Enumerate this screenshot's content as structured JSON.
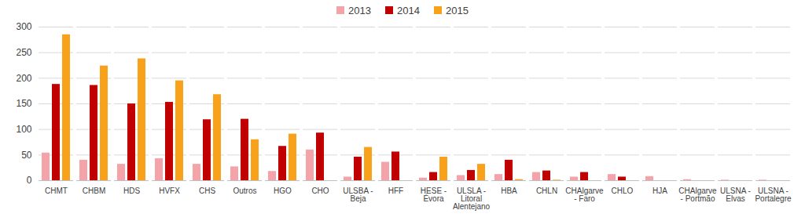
{
  "chart_data": {
    "type": "bar",
    "categories": [
      "CHMT",
      "CHBM",
      "HDS",
      "HVFX",
      "CHS",
      "Outros",
      "HGO",
      "CHO",
      "ULSBA - Beja",
      "HFF",
      "HESE - Évora",
      "ULSLA - Litoral Alentejano",
      "HBA",
      "CHLN",
      "CHAlgarve - Faro",
      "CHLO",
      "HJA",
      "CHAlgarve - Portmão",
      "ULSNA - Elvas",
      "ULSNA - Portalegre"
    ],
    "series": [
      {
        "name": "2013",
        "color": "#f4a3a8",
        "values": [
          54,
          40,
          32,
          43,
          32,
          27,
          18,
          60,
          7,
          36,
          5,
          10,
          12,
          16,
          7,
          12,
          8,
          2,
          1,
          1
        ]
      },
      {
        "name": "2014",
        "color": "#c00000",
        "values": [
          188,
          186,
          150,
          153,
          119,
          120,
          67,
          93,
          46,
          56,
          16,
          20,
          40,
          19,
          16,
          7,
          0,
          0,
          0,
          0
        ]
      },
      {
        "name": "2015",
        "color": "#f9a11b",
        "values": [
          285,
          224,
          238,
          195,
          168,
          80,
          91,
          0,
          65,
          0,
          46,
          32,
          2,
          1,
          0,
          0,
          0,
          0,
          0,
          0
        ]
      }
    ],
    "ylim": [
      0,
      300
    ],
    "yticks": [
      0,
      50,
      100,
      150,
      200,
      250,
      300
    ],
    "grid": true,
    "legend": "top"
  }
}
